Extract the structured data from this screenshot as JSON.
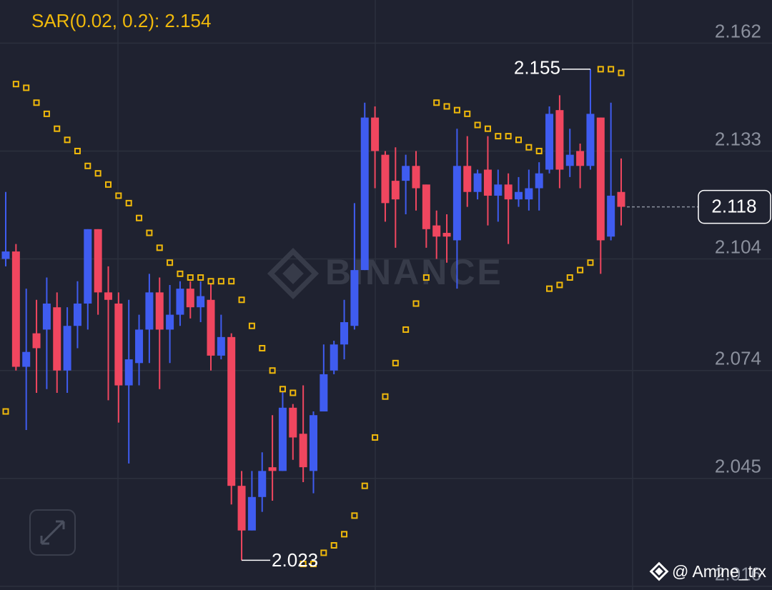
{
  "chart_data": {
    "type": "candlestick",
    "indicator_label": "SAR(0.02, 0.2): 2.154",
    "open": [
      2.104,
      2.106,
      2.075,
      2.084,
      2.085,
      2.091,
      2.074,
      2.086,
      2.092,
      2.112,
      2.095,
      2.092,
      2.07,
      2.076,
      2.085,
      2.095,
      2.085,
      2.089,
      2.096,
      2.091,
      2.093,
      2.078,
      2.083,
      2.043,
      2.031,
      2.04,
      2.048,
      2.047,
      2.064,
      2.057,
      2.047,
      2.063,
      2.074,
      2.081,
      2.086,
      2.101,
      2.142,
      2.132,
      2.125,
      2.125,
      2.129,
      2.124,
      2.113,
      2.111,
      2.109,
      2.129,
      2.122,
      2.128,
      2.121,
      2.124,
      2.12,
      2.12,
      2.123,
      2.128,
      2.144,
      2.129,
      2.133,
      2.129,
      2.142,
      2.11,
      2.122
    ],
    "high": [
      2.122,
      2.108,
      2.096,
      2.093,
      2.099,
      2.095,
      2.091,
      2.098,
      2.112,
      2.112,
      2.102,
      2.095,
      2.093,
      2.089,
      2.1,
      2.099,
      2.097,
      2.098,
      2.098,
      2.098,
      2.098,
      2.089,
      2.084,
      2.047,
      2.047,
      2.052,
      2.062,
      2.069,
      2.065,
      2.07,
      2.063,
      2.081,
      2.082,
      2.093,
      2.119,
      2.146,
      2.145,
      2.133,
      2.134,
      2.132,
      2.133,
      2.124,
      2.117,
      2.116,
      2.139,
      2.137,
      2.128,
      2.137,
      2.128,
      2.127,
      2.126,
      2.128,
      2.13,
      2.145,
      2.148,
      2.139,
      2.135,
      2.155,
      2.142,
      2.146,
      2.131
    ],
    "low": [
      2.102,
      2.074,
      2.058,
      2.068,
      2.069,
      2.068,
      2.068,
      2.08,
      2.085,
      2.089,
      2.066,
      2.06,
      2.049,
      2.07,
      2.076,
      2.069,
      2.076,
      2.086,
      2.088,
      2.087,
      2.074,
      2.077,
      2.038,
      2.023,
      2.031,
      2.036,
      2.039,
      2.047,
      2.05,
      2.044,
      2.041,
      2.063,
      2.073,
      2.077,
      2.085,
      2.101,
      2.123,
      2.114,
      2.107,
      2.116,
      2.117,
      2.107,
      2.104,
      2.103,
      2.096,
      2.118,
      2.12,
      2.113,
      2.114,
      2.108,
      2.118,
      2.117,
      2.117,
      2.127,
      2.123,
      2.126,
      2.123,
      2.128,
      2.1,
      2.109,
      2.113
    ],
    "close": [
      2.106,
      2.075,
      2.079,
      2.08,
      2.092,
      2.074,
      2.086,
      2.092,
      2.112,
      2.095,
      2.093,
      2.07,
      2.077,
      2.085,
      2.095,
      2.085,
      2.089,
      2.096,
      2.091,
      2.094,
      2.078,
      2.083,
      2.043,
      2.031,
      2.04,
      2.047,
      2.047,
      2.064,
      2.056,
      2.048,
      2.062,
      2.073,
      2.081,
      2.087,
      2.101,
      2.142,
      2.133,
      2.119,
      2.12,
      2.129,
      2.123,
      2.112,
      2.11,
      2.11,
      2.129,
      2.122,
      2.127,
      2.121,
      2.124,
      2.12,
      2.122,
      2.123,
      2.127,
      2.143,
      2.128,
      2.132,
      2.129,
      2.143,
      2.109,
      2.121,
      2.118
    ],
    "sar": [
      2.063,
      2.151,
      2.15,
      2.146,
      2.143,
      2.139,
      2.136,
      2.133,
      2.129,
      2.127,
      2.124,
      2.121,
      2.119,
      2.115,
      2.111,
      2.107,
      2.103,
      2.1,
      2.099,
      2.099,
      2.098,
      2.098,
      2.098,
      2.093,
      2.086,
      2.08,
      2.074,
      2.069,
      2.068,
      2.022,
      2.022,
      2.025,
      2.027,
      2.03,
      2.035,
      2.043,
      2.056,
      2.067,
      2.076,
      2.085,
      2.092,
      2.099,
      2.146,
      2.145,
      2.144,
      2.143,
      2.14,
      2.139,
      2.137,
      2.137,
      2.136,
      2.134,
      2.133,
      2.096,
      2.097,
      2.099,
      2.101,
      2.103,
      2.155,
      2.155,
      2.154
    ],
    "up_color": "#3f5cf0",
    "down_color": "#f0465f",
    "sar_color": "#f0b90b",
    "ylim": [
      2.015,
      2.1736
    ],
    "yticks": [
      2.162,
      2.133,
      2.104,
      2.074,
      2.045,
      2.016
    ],
    "grid": true,
    "max_index": 57,
    "min_index": 23,
    "watermark": "BINANCE",
    "credit": "@ Amine_trx"
  }
}
